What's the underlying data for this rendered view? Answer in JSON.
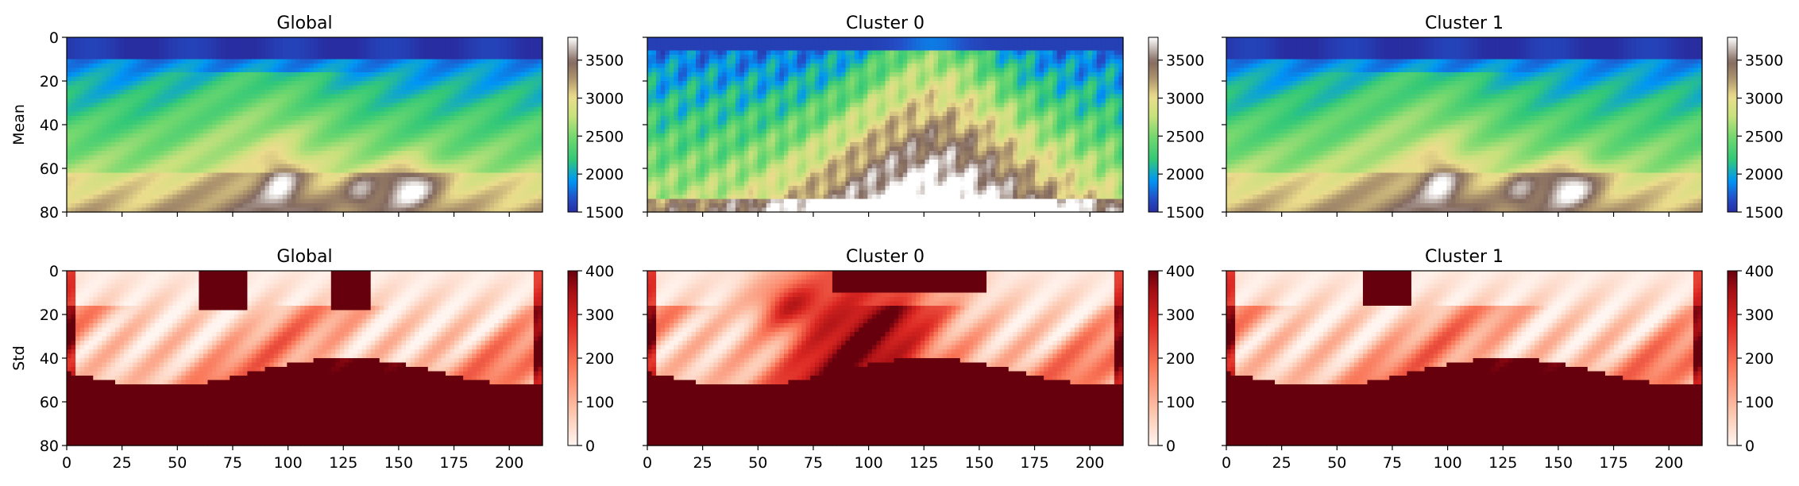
{
  "chart_data": [
    {
      "type": "heatmap",
      "row": "mean",
      "title": "Global",
      "ylabel": "Mean",
      "xlim": [
        0,
        215
      ],
      "ylim": [
        80,
        0
      ],
      "xticks": [],
      "yticks": [
        "0",
        "20",
        "40",
        "60",
        "80"
      ],
      "colormap": "terrain",
      "colorbar_range": [
        1500,
        3800
      ],
      "colorbar_ticks": [
        "1500",
        "2000",
        "2500",
        "3000",
        "3500"
      ]
    },
    {
      "type": "heatmap",
      "row": "mean",
      "title": "Cluster 0",
      "ylabel": "",
      "xlim": [
        0,
        215
      ],
      "ylim": [
        80,
        0
      ],
      "xticks": [],
      "yticks": [],
      "colormap": "terrain",
      "colorbar_range": [
        1500,
        3800
      ],
      "colorbar_ticks": [
        "1500",
        "2000",
        "2500",
        "3000",
        "3500"
      ]
    },
    {
      "type": "heatmap",
      "row": "mean",
      "title": "Cluster 1",
      "ylabel": "",
      "xlim": [
        0,
        215
      ],
      "ylim": [
        80,
        0
      ],
      "xticks": [],
      "yticks": [],
      "colormap": "terrain",
      "colorbar_range": [
        1500,
        3800
      ],
      "colorbar_ticks": [
        "1500",
        "2000",
        "2500",
        "3000",
        "3500"
      ]
    },
    {
      "type": "heatmap",
      "row": "std",
      "title": "Global",
      "ylabel": "Std",
      "xlim": [
        0,
        215
      ],
      "ylim": [
        80,
        0
      ],
      "xticks": [
        "0",
        "25",
        "50",
        "75",
        "100",
        "125",
        "150",
        "175",
        "200"
      ],
      "yticks": [
        "0",
        "20",
        "40",
        "60",
        "80"
      ],
      "colormap": "Reds",
      "colorbar_range": [
        0,
        400
      ],
      "colorbar_ticks": [
        "0",
        "100",
        "200",
        "300",
        "400"
      ]
    },
    {
      "type": "heatmap",
      "row": "std",
      "title": "Cluster 0",
      "ylabel": "",
      "xlim": [
        0,
        215
      ],
      "ylim": [
        80,
        0
      ],
      "xticks": [
        "0",
        "25",
        "50",
        "75",
        "100",
        "125",
        "150",
        "175",
        "200"
      ],
      "yticks": [],
      "colormap": "Reds",
      "colorbar_range": [
        0,
        400
      ],
      "colorbar_ticks": [
        "0",
        "100",
        "200",
        "300",
        "400"
      ]
    },
    {
      "type": "heatmap",
      "row": "std",
      "title": "Cluster 1",
      "ylabel": "",
      "xlim": [
        0,
        215
      ],
      "ylim": [
        80,
        0
      ],
      "xticks": [
        "0",
        "25",
        "50",
        "75",
        "100",
        "125",
        "150",
        "175",
        "200"
      ],
      "yticks": [],
      "colormap": "Reds",
      "colorbar_range": [
        0,
        400
      ],
      "colorbar_ticks": [
        "0",
        "100",
        "200",
        "300",
        "400"
      ]
    }
  ]
}
